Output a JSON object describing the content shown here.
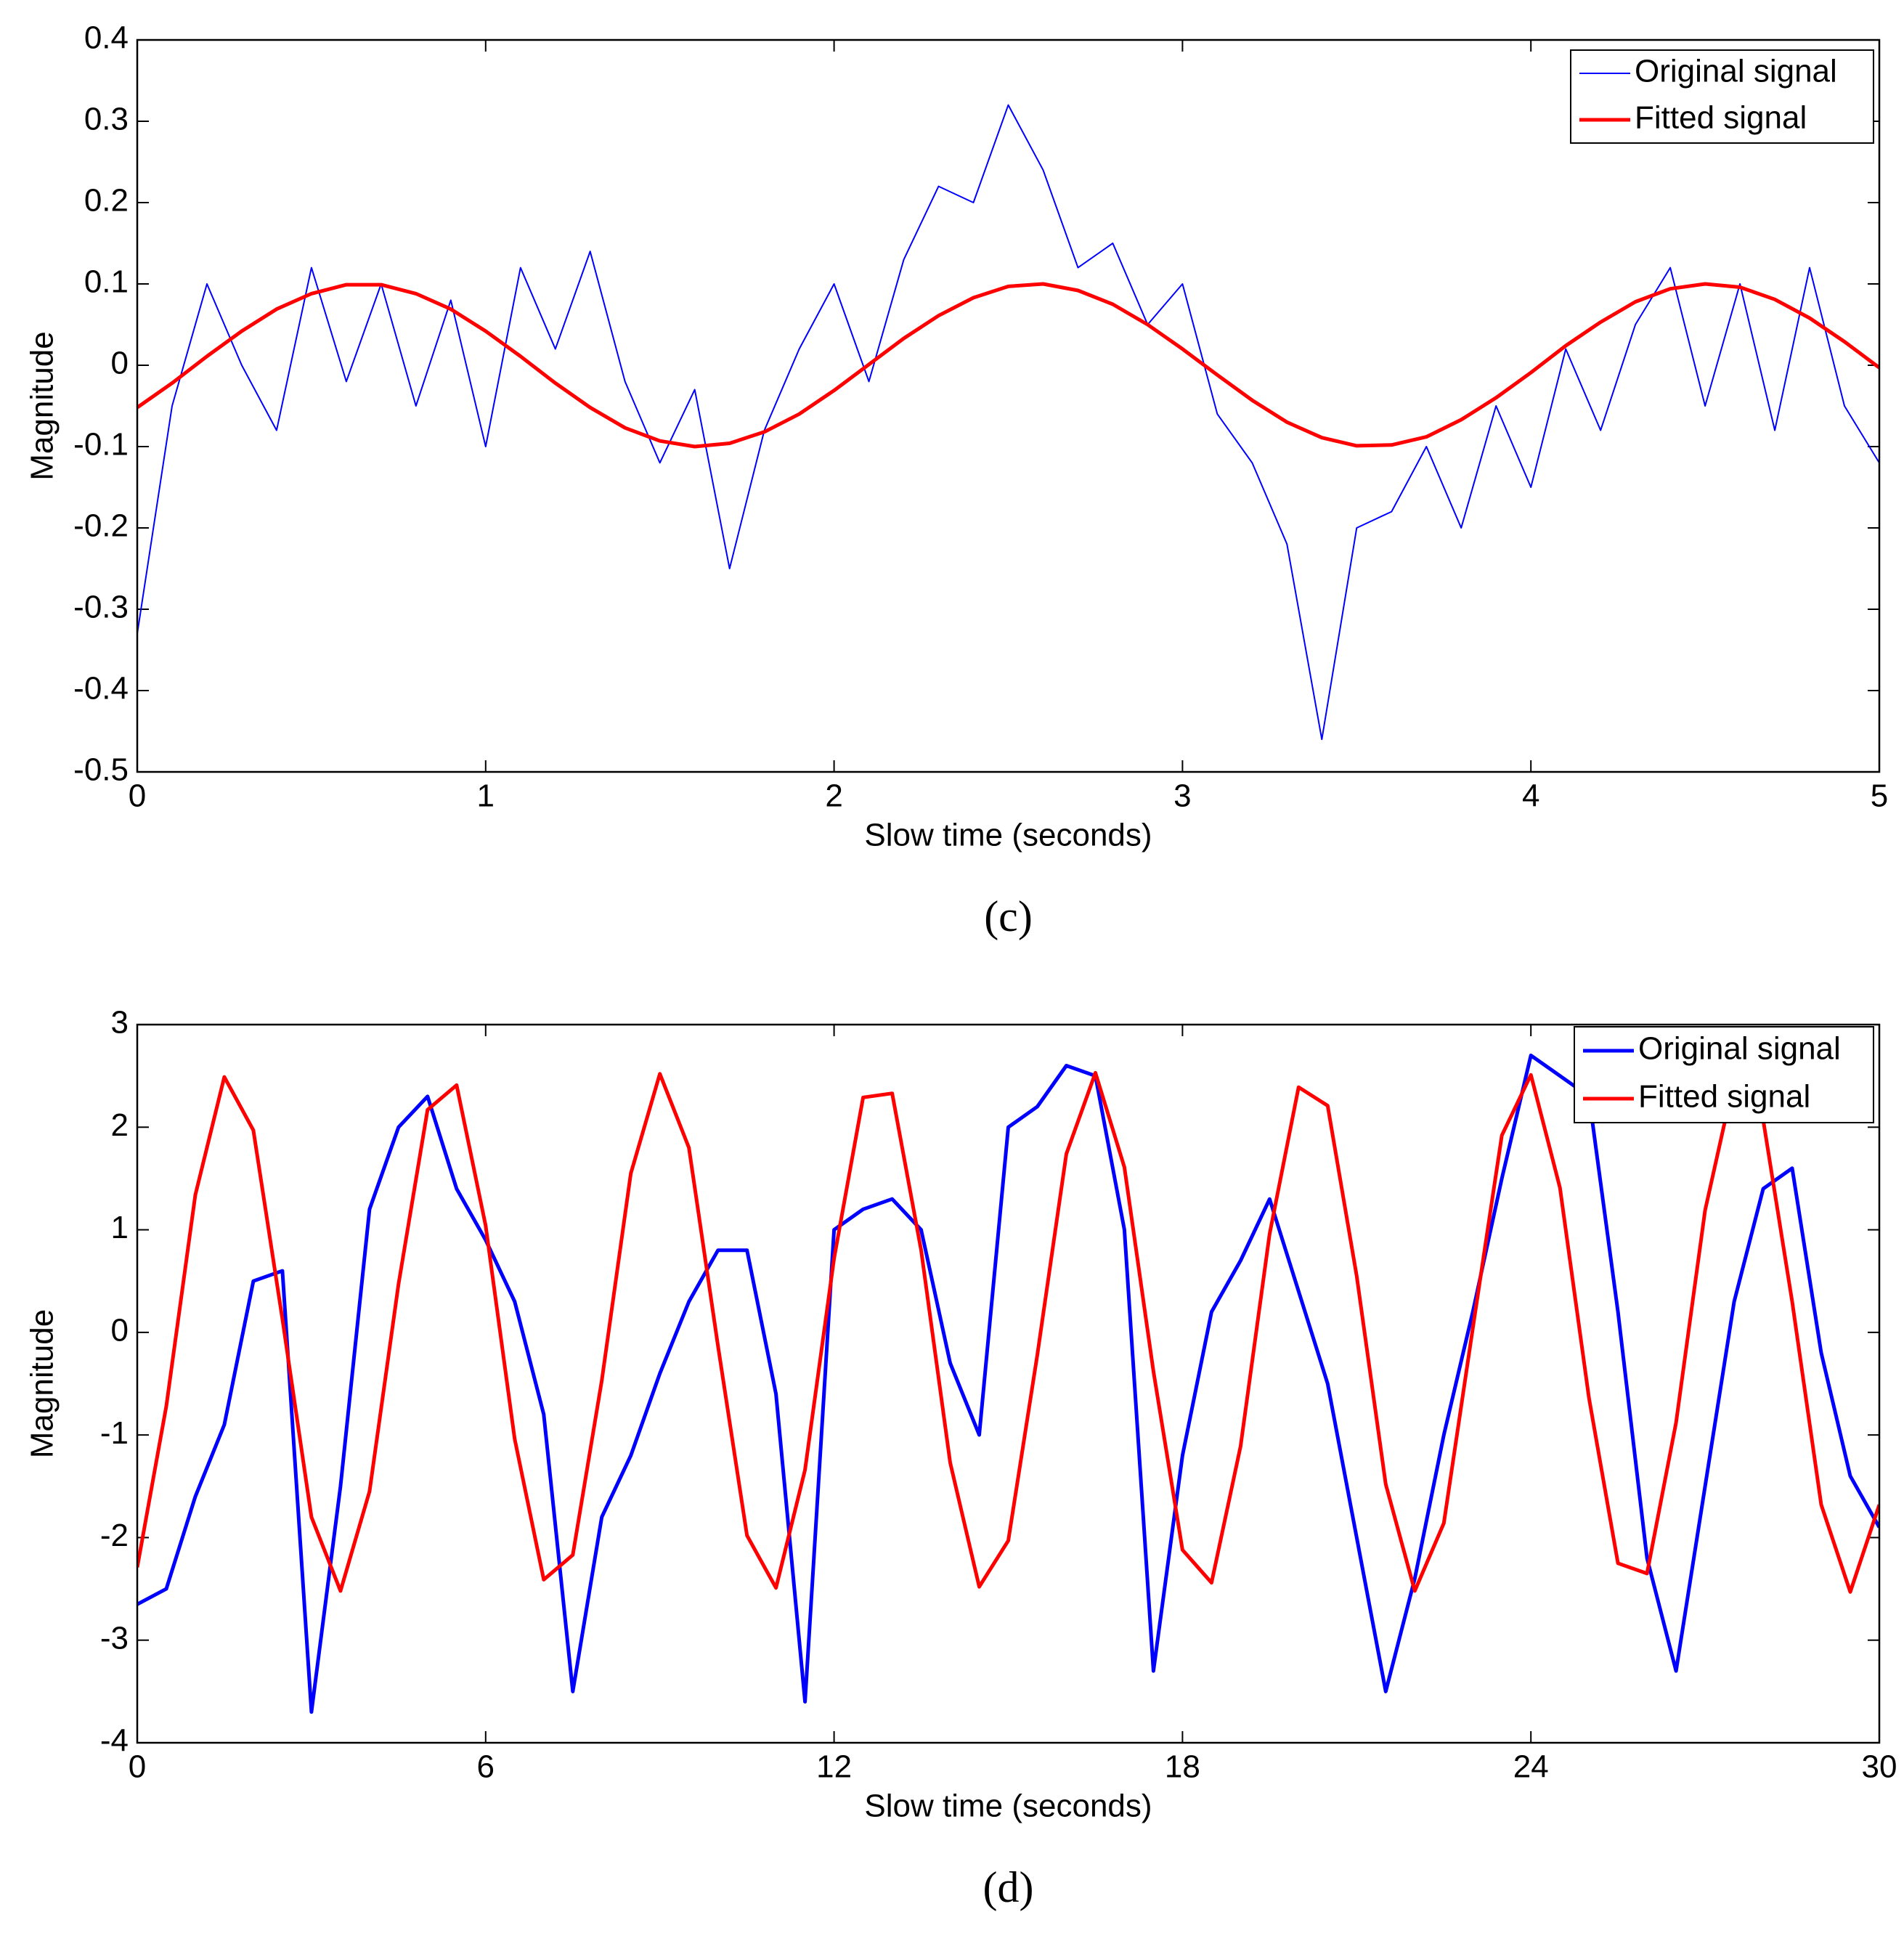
{
  "chart_data": [
    {
      "type": "line",
      "caption": "(c)",
      "x_label": "Slow time (seconds)",
      "y_label": "Magnitude",
      "x": [
        0,
        0.1,
        0.2,
        0.3,
        0.4,
        0.5,
        0.6,
        0.7,
        0.8,
        0.9,
        1,
        1.1,
        1.2,
        1.3,
        1.4,
        1.5,
        1.6,
        1.7,
        1.8,
        1.9,
        2,
        2.1,
        2.2,
        2.3,
        2.4,
        2.5,
        2.6,
        2.7,
        2.8,
        2.9,
        3,
        3.1,
        3.2,
        3.3,
        3.4,
        3.5,
        3.6,
        3.7,
        3.8,
        3.9,
        4,
        4.1,
        4.2,
        4.3,
        4.4,
        4.5,
        4.6,
        4.7,
        4.8,
        4.9,
        5
      ],
      "series": [
        {
          "name": "Original signal",
          "color": "#0000ff",
          "width": 2,
          "values": [
            -0.33,
            -0.05,
            0.1,
            0.0,
            -0.08,
            0.12,
            -0.02,
            0.1,
            -0.05,
            0.08,
            -0.1,
            0.12,
            0.02,
            0.14,
            -0.02,
            -0.12,
            -0.03,
            -0.25,
            -0.08,
            0.02,
            0.1,
            -0.02,
            0.13,
            0.22,
            0.2,
            0.32,
            0.24,
            0.12,
            0.15,
            0.05,
            0.1,
            -0.06,
            -0.12,
            -0.22,
            -0.46,
            -0.2,
            -0.18,
            -0.1,
            -0.2,
            -0.05,
            -0.15,
            0.02,
            -0.08,
            0.05,
            0.12,
            -0.05,
            0.1,
            -0.08,
            0.12,
            -0.05,
            -0.12
          ]
        },
        {
          "name": "Fitted signal",
          "color": "#ff0000",
          "width": 5,
          "values": [
            -0.052,
            -0.022,
            0.011,
            0.042,
            0.069,
            0.088,
            0.099,
            0.099,
            0.088,
            0.069,
            0.042,
            0.011,
            -0.022,
            -0.052,
            -0.077,
            -0.093,
            -0.1,
            -0.096,
            -0.082,
            -0.06,
            -0.031,
            0.001,
            0.033,
            0.061,
            0.083,
            0.097,
            0.1,
            0.092,
            0.075,
            0.05,
            0.02,
            -0.012,
            -0.043,
            -0.07,
            -0.089,
            -0.099,
            -0.098,
            -0.088,
            -0.067,
            -0.04,
            -0.009,
            0.024,
            0.053,
            0.078,
            0.094,
            0.1,
            0.096,
            0.081,
            0.058,
            0.029,
            -0.003
          ]
        }
      ],
      "xlim": [
        0,
        5
      ],
      "xticks": [
        0,
        1,
        2,
        3,
        4,
        5
      ],
      "ylim": [
        -0.5,
        0.4
      ],
      "yticks": [
        -0.5,
        -0.4,
        -0.3,
        -0.2,
        -0.1,
        0,
        0.1,
        0.2,
        0.3,
        0.4
      ],
      "legend": "upper right"
    },
    {
      "type": "line",
      "caption": "(d)",
      "x_label": "Slow time (seconds)",
      "y_label": "Magnitude",
      "x": [
        0,
        0.5,
        1,
        1.5,
        2,
        2.5,
        3,
        3.5,
        4,
        4.5,
        5,
        5.5,
        6,
        6.5,
        7,
        7.5,
        8,
        8.5,
        9,
        9.5,
        10,
        10.5,
        11,
        11.5,
        12,
        12.5,
        13,
        13.5,
        14,
        14.5,
        15,
        15.5,
        16,
        16.5,
        17,
        17.5,
        18,
        18.5,
        19,
        19.5,
        20,
        20.5,
        21,
        21.5,
        22,
        22.5,
        23,
        23.5,
        24,
        24.5,
        25,
        25.5,
        26,
        26.5,
        27,
        27.5,
        28,
        28.5,
        29,
        29.5,
        30
      ],
      "series": [
        {
          "name": "Original signal",
          "color": "#0000ff",
          "width": 5,
          "values": [
            -2.65,
            -2.5,
            -1.6,
            -0.9,
            0.5,
            0.6,
            -3.7,
            -1.5,
            1.2,
            2.0,
            2.3,
            1.4,
            0.9,
            0.3,
            -0.8,
            -3.5,
            -1.8,
            -1.2,
            -0.4,
            0.3,
            0.8,
            0.8,
            -0.6,
            -3.6,
            1.0,
            1.2,
            1.3,
            1.0,
            -0.3,
            -1.0,
            2.0,
            2.2,
            2.6,
            2.5,
            1.0,
            -3.3,
            -1.2,
            0.2,
            0.7,
            1.3,
            0.4,
            -0.5,
            -2.0,
            -3.5,
            -2.4,
            -1.0,
            0.2,
            1.5,
            2.7,
            2.5,
            2.3,
            0.2,
            -2.2,
            -3.3,
            -1.5,
            0.3,
            1.4,
            1.6,
            -0.2,
            -1.4,
            -1.9
          ]
        },
        {
          "name": "Fitted signal",
          "color": "#ff0000",
          "width": 5,
          "values": [
            -2.29,
            -0.72,
            1.34,
            2.49,
            1.97,
            0.13,
            -1.8,
            -2.52,
            -1.55,
            0.47,
            2.17,
            2.41,
            1.04,
            -1.04,
            -2.41,
            -2.17,
            -0.47,
            1.55,
            2.52,
            1.8,
            -0.13,
            -1.98,
            -2.49,
            -1.34,
            0.72,
            2.29,
            2.33,
            0.8,
            -1.27,
            -2.48,
            -2.03,
            -0.22,
            1.74,
            2.53,
            1.61,
            -0.38,
            -2.12,
            -2.44,
            -1.11,
            0.96,
            2.39,
            2.21,
            0.55,
            -1.48,
            -2.52,
            -1.86,
            0.04,
            1.92,
            2.51,
            1.41,
            -0.64,
            -2.25,
            -2.35,
            -0.88,
            1.19,
            2.46,
            2.07,
            0.3,
            -1.68,
            -2.53,
            -1.68
          ]
        }
      ],
      "xlim": [
        0,
        30
      ],
      "xticks": [
        0,
        6,
        12,
        18,
        24,
        30
      ],
      "ylim": [
        -4,
        3
      ],
      "yticks": [
        -4,
        -3,
        -2,
        -1,
        0,
        1,
        2,
        3
      ],
      "legend": "upper right"
    }
  ]
}
